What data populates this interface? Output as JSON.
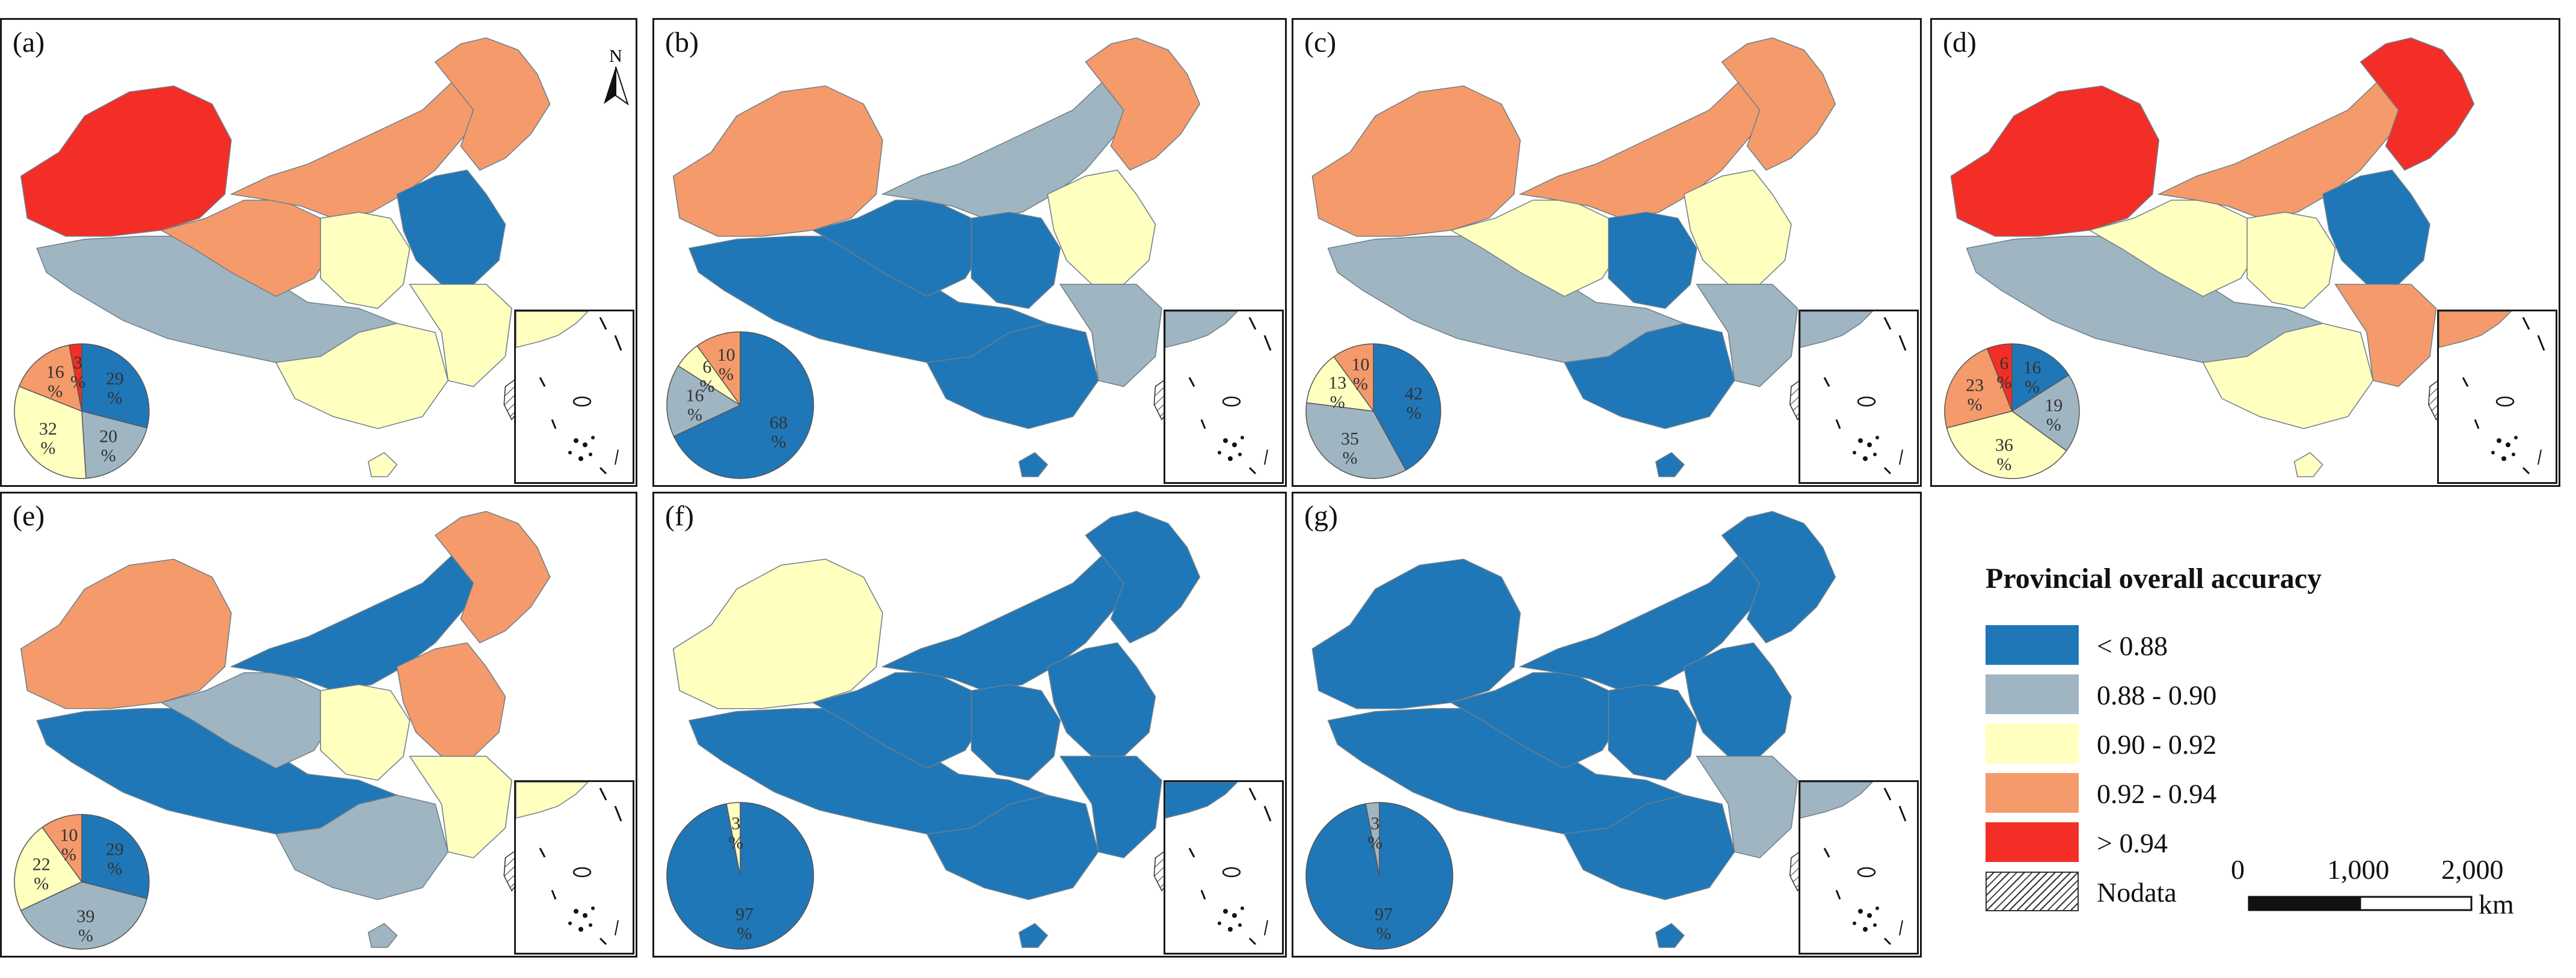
{
  "colors": {
    "lt088": "#1F77B8",
    "r088_090": "#9FB5C2",
    "r090_092": "#FFFFC0",
    "r092_094": "#F59A6B",
    "gt094": "#F22E26",
    "nodata": "hatch",
    "border": "#6e7f89"
  },
  "icons": {
    "north": "north-arrow-icon"
  },
  "north_label": "N",
  "panels": [
    {
      "label": "(a)",
      "west": "gt094",
      "tibet": "r088_090",
      "qinghai": "r092_094",
      "inner_mongolia": "r092_094",
      "northeast": "r092_094",
      "central": "r090_092",
      "north_china": "lt088",
      "south": "r090_092",
      "southeast": "r090_092",
      "pie": [
        {
          "class": "lt088",
          "value": 29,
          "label": "29"
        },
        {
          "class": "r088_090",
          "value": 20,
          "label": "20"
        },
        {
          "class": "r090_092",
          "value": 32,
          "label": "32"
        },
        {
          "class": "r092_094",
          "value": 16,
          "label": "16"
        },
        {
          "class": "gt094",
          "value": 3,
          "label": "3"
        }
      ]
    },
    {
      "label": "(b)",
      "west": "r092_094",
      "tibet": "lt088",
      "qinghai": "lt088",
      "inner_mongolia": "r088_090",
      "northeast": "r092_094",
      "central": "lt088",
      "north_china": "r090_092",
      "south": "lt088",
      "southeast": "r088_090",
      "pie": [
        {
          "class": "lt088",
          "value": 68,
          "label": "68"
        },
        {
          "class": "r088_090",
          "value": 16,
          "label": "16"
        },
        {
          "class": "r090_092",
          "value": 6,
          "label": "6"
        },
        {
          "class": "r092_094",
          "value": 10,
          "label": "10"
        }
      ]
    },
    {
      "label": "(c)",
      "west": "r092_094",
      "tibet": "r088_090",
      "qinghai": "r090_092",
      "inner_mongolia": "r092_094",
      "northeast": "r092_094",
      "central": "lt088",
      "north_china": "r090_092",
      "south": "lt088",
      "southeast": "r088_090",
      "pie": [
        {
          "class": "lt088",
          "value": 42,
          "label": "42"
        },
        {
          "class": "r088_090",
          "value": 35,
          "label": "35"
        },
        {
          "class": "r090_092",
          "value": 13,
          "label": "13"
        },
        {
          "class": "r092_094",
          "value": 10,
          "label": "10"
        }
      ]
    },
    {
      "label": "(d)",
      "west": "gt094",
      "tibet": "r088_090",
      "qinghai": "r090_092",
      "inner_mongolia": "r092_094",
      "northeast": "gt094",
      "central": "r090_092",
      "north_china": "lt088",
      "south": "r090_092",
      "southeast": "r092_094",
      "pie": [
        {
          "class": "lt088",
          "value": 16,
          "label": "16"
        },
        {
          "class": "r088_090",
          "value": 19,
          "label": "19"
        },
        {
          "class": "r090_092",
          "value": 36,
          "label": "36"
        },
        {
          "class": "r092_094",
          "value": 23,
          "label": "23"
        },
        {
          "class": "gt094",
          "value": 6,
          "label": "6"
        }
      ]
    },
    {
      "label": "(e)",
      "west": "r092_094",
      "tibet": "lt088",
      "qinghai": "r088_090",
      "inner_mongolia": "lt088",
      "northeast": "r092_094",
      "central": "r090_092",
      "north_china": "r092_094",
      "south": "r088_090",
      "southeast": "r090_092",
      "pie": [
        {
          "class": "lt088",
          "value": 29,
          "label": "29"
        },
        {
          "class": "r088_090",
          "value": 39,
          "label": "39"
        },
        {
          "class": "r090_092",
          "value": 22,
          "label": "22"
        },
        {
          "class": "r092_094",
          "value": 10,
          "label": "10"
        }
      ]
    },
    {
      "label": "(f)",
      "west": "r090_092",
      "tibet": "lt088",
      "qinghai": "lt088",
      "inner_mongolia": "lt088",
      "northeast": "lt088",
      "central": "lt088",
      "north_china": "lt088",
      "south": "lt088",
      "southeast": "lt088",
      "pie": [
        {
          "class": "lt088",
          "value": 97,
          "label": "97"
        },
        {
          "class": "r090_092",
          "value": 3,
          "label": "3"
        }
      ]
    },
    {
      "label": "(g)",
      "west": "lt088",
      "tibet": "lt088",
      "qinghai": "lt088",
      "inner_mongolia": "lt088",
      "northeast": "lt088",
      "central": "lt088",
      "north_china": "lt088",
      "south": "lt088",
      "southeast": "r088_090",
      "pie": [
        {
          "class": "lt088",
          "value": 97,
          "label": "97"
        },
        {
          "class": "r088_090",
          "value": 3,
          "label": "3"
        }
      ]
    }
  ],
  "pie_unit": "%",
  "legend": {
    "title": "Provincial overall accuracy",
    "items": [
      {
        "class": "lt088",
        "label": "< 0.88"
      },
      {
        "class": "r088_090",
        "label": "0.88 - 0.90"
      },
      {
        "class": "r090_092",
        "label": "0.90 - 0.92"
      },
      {
        "class": "r092_094",
        "label": "0.92 - 0.94"
      },
      {
        "class": "gt094",
        "label": "> 0.94"
      },
      {
        "class": "nodata",
        "label": "Nodata"
      }
    ]
  },
  "scalebar": {
    "ticks": [
      "0",
      "1,000",
      "2,000"
    ],
    "unit": "km"
  }
}
